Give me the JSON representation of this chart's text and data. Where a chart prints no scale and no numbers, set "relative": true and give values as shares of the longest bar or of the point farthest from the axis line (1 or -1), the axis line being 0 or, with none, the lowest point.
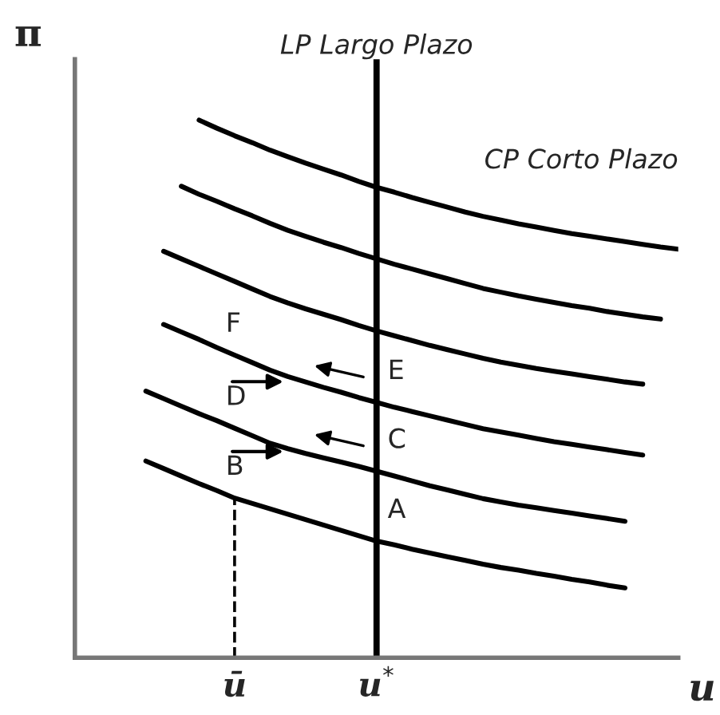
{
  "chart_data": {
    "type": "line",
    "relative": true,
    "xlabel": "u",
    "ylabel": "π",
    "categories": [
      null,
      null,
      null,
      null,
      null,
      null,
      null,
      null,
      null,
      "ū",
      null,
      null,
      null,
      null,
      null,
      null,
      null,
      "u$^{*}$",
      null,
      null,
      null,
      null,
      null,
      null,
      null,
      null,
      null,
      null,
      null,
      null,
      null,
      null,
      null,
      null,
      null
    ],
    "series": [
      {
        "color": "#000000",
        "values": [
          null,
          null,
          null,
          null,
          null,
          null,
          null,
          1.0,
          0.985,
          0.971,
          0.958,
          0.944,
          0.932,
          0.92,
          0.909,
          0.898,
          0.886,
          0.875,
          0.866,
          0.856,
          0.847,
          0.838,
          0.829,
          0.821,
          0.814,
          0.807,
          0.801,
          0.795,
          0.789,
          0.784,
          0.779,
          0.774,
          0.769,
          0.764,
          0.76
        ]
      },
      {
        "color": "#000000",
        "values": [
          null,
          null,
          null,
          null,
          null,
          null,
          0.877,
          0.862,
          0.849,
          0.835,
          0.822,
          0.808,
          0.795,
          0.784,
          0.773,
          0.763,
          0.752,
          0.742,
          0.732,
          0.723,
          0.714,
          0.705,
          0.696,
          0.687,
          0.68,
          0.673,
          0.667,
          0.661,
          0.655,
          0.65,
          0.644,
          0.639,
          0.634,
          0.63,
          null
        ]
      },
      {
        "color": "#000000",
        "values": [
          null,
          null,
          null,
          null,
          null,
          0.756,
          0.742,
          0.728,
          0.714,
          0.7,
          0.686,
          0.672,
          0.66,
          0.649,
          0.639,
          0.629,
          0.618,
          0.608,
          0.599,
          0.59,
          0.581,
          0.573,
          0.565,
          0.557,
          0.55,
          0.544,
          0.538,
          0.533,
          0.528,
          0.523,
          0.518,
          0.513,
          0.509,
          null,
          null
        ]
      },
      {
        "color": "#000000",
        "values": [
          null,
          null,
          null,
          null,
          null,
          0.62,
          0.606,
          0.592,
          0.577,
          0.563,
          0.549,
          0.535,
          0.523,
          0.513,
          0.503,
          0.494,
          0.484,
          0.475,
          0.466,
          0.458,
          0.45,
          0.442,
          0.434,
          0.426,
          0.42,
          0.414,
          0.408,
          0.402,
          0.397,
          0.392,
          0.387,
          0.382,
          0.377,
          null,
          null
        ]
      },
      {
        "color": "#000000",
        "values": [
          null,
          null,
          null,
          null,
          0.496,
          0.482,
          0.468,
          0.454,
          0.441,
          0.427,
          0.413,
          0.399,
          0.389,
          0.38,
          0.372,
          0.364,
          0.356,
          0.347,
          0.338,
          0.329,
          0.32,
          0.312,
          0.304,
          0.296,
          0.29,
          0.284,
          0.279,
          0.274,
          0.269,
          0.264,
          0.259,
          0.254,
          null,
          null,
          null
        ]
      },
      {
        "color": "#000000",
        "values": [
          null,
          null,
          null,
          null,
          0.366,
          0.352,
          0.338,
          0.324,
          0.311,
          0.297,
          0.287,
          0.277,
          0.267,
          0.257,
          0.247,
          0.237,
          0.227,
          0.217,
          0.21,
          0.202,
          0.195,
          0.188,
          0.181,
          0.174,
          0.168,
          0.163,
          0.157,
          0.152,
          0.146,
          0.141,
          0.135,
          0.13,
          null,
          null,
          null
        ]
      }
    ],
    "ref_lines": [
      {
        "axis": "x",
        "value": "u$^{*}$",
        "label": "LP Largo Plazo",
        "color": "#000000",
        "line_style": "solid"
      },
      {
        "axis": "x",
        "value": "ū",
        "color": "#000000",
        "line_style": "dashed"
      }
    ],
    "annotations": [
      "CP Corto Plazo",
      {
        "text": "A",
        "x": "u$^{*}$",
        "y": 0.217
      },
      {
        "text": "B",
        "x": "ū",
        "y": 0.297
      },
      {
        "text": "C",
        "x": "u$^{*}$",
        "y": 0.347
      },
      {
        "text": "D",
        "x": "ū",
        "y": 0.427
      },
      {
        "text": "E",
        "x": "u$^{*}$",
        "y": 0.475
      },
      {
        "text": "F",
        "x": "ū",
        "y": 0.563
      }
    ],
    "grid": false,
    "marker": "none",
    "line_style": "solid"
  }
}
